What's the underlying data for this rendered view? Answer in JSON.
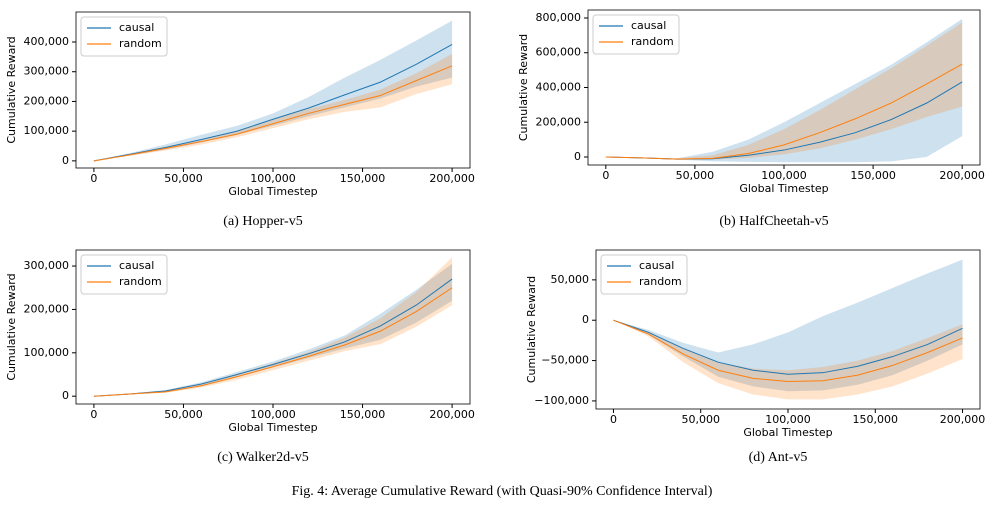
{
  "figure_caption": "Fig. 4: Average Cumulative Reward (with Quasi-90% Confidence Interval)",
  "chart_data": [
    {
      "type": "line",
      "caption": "(a) Hopper-v5",
      "xlabel": "Global Timestep",
      "ylabel": "Cumulative Reward",
      "legend": "upper left",
      "x": [
        0,
        20000,
        40000,
        60000,
        80000,
        100000,
        120000,
        140000,
        160000,
        180000,
        200000
      ],
      "xlim": [
        -10000,
        210000
      ],
      "ylim": [
        -24000,
        501000
      ],
      "xticks": [
        0,
        {
          "value": 50000,
          "label": "50,000"
        },
        {
          "value": 100000,
          "label": "100,000"
        },
        {
          "value": 150000,
          "label": "150,000"
        },
        {
          "value": 200000,
          "label": "200,000"
        }
      ],
      "yticks": [
        0,
        {
          "value": 100000,
          "label": "100,000"
        },
        {
          "value": 200000,
          "label": "200,000"
        },
        {
          "value": 300000,
          "label": "300,000"
        },
        {
          "value": 400000,
          "label": "400,000"
        }
      ],
      "series": [
        {
          "name": "causal",
          "color": "#1f77b4",
          "values": [
            0,
            22000,
            45000,
            72000,
            100000,
            140000,
            178000,
            222000,
            265000,
            325000,
            392000
          ],
          "lower": [
            0,
            18000,
            38000,
            62000,
            88000,
            118000,
            150000,
            180000,
            210000,
            250000,
            280000
          ],
          "upper": [
            0,
            26000,
            55000,
            88000,
            118000,
            160000,
            215000,
            280000,
            340000,
            405000,
            472000
          ]
        },
        {
          "name": "random",
          "color": "#ff7f0e",
          "values": [
            0,
            20000,
            42000,
            65000,
            90000,
            125000,
            160000,
            190000,
            220000,
            270000,
            320000
          ],
          "lower": [
            0,
            17000,
            35000,
            55000,
            80000,
            110000,
            140000,
            165000,
            180000,
            225000,
            258000
          ],
          "upper": [
            0,
            23000,
            48000,
            72000,
            100000,
            140000,
            175000,
            205000,
            240000,
            295000,
            360000
          ]
        }
      ]
    },
    {
      "type": "line",
      "caption": "(b) HalfCheetah-v5",
      "xlabel": "Global Timestep",
      "ylabel": "Cumulative Reward",
      "legend": "upper left",
      "x": [
        0,
        20000,
        40000,
        60000,
        80000,
        100000,
        120000,
        140000,
        160000,
        180000,
        200000
      ],
      "xlim": [
        -10000,
        210000
      ],
      "ylim": [
        -46000,
        846000
      ],
      "xticks": [
        0,
        {
          "value": 50000,
          "label": "50,000"
        },
        {
          "value": 100000,
          "label": "100,000"
        },
        {
          "value": 150000,
          "label": "150,000"
        },
        {
          "value": 200000,
          "label": "200,000"
        }
      ],
      "yticks": [
        0,
        {
          "value": 200000,
          "label": "200,000"
        },
        {
          "value": 400000,
          "label": "400,000"
        },
        {
          "value": 600000,
          "label": "600,000"
        },
        {
          "value": 800000,
          "label": "800,000"
        }
      ],
      "series": [
        {
          "name": "causal",
          "color": "#1f77b4",
          "values": [
            0,
            -5000,
            -12000,
            -10000,
            10000,
            40000,
            85000,
            140000,
            215000,
            310000,
            432000
          ],
          "lower": [
            0,
            -8000,
            -15000,
            -25000,
            -28000,
            -30000,
            -30000,
            -30000,
            -25000,
            0,
            120000
          ],
          "upper": [
            0,
            -2000,
            -8000,
            30000,
            100000,
            200000,
            310000,
            420000,
            530000,
            660000,
            795000
          ]
        },
        {
          "name": "random",
          "color": "#ff7f0e",
          "values": [
            0,
            -5000,
            -12000,
            -8000,
            20000,
            70000,
            140000,
            220000,
            310000,
            420000,
            535000
          ],
          "lower": [
            0,
            -7000,
            -15000,
            -15000,
            -5000,
            15000,
            50000,
            100000,
            160000,
            230000,
            290000
          ],
          "upper": [
            0,
            -3000,
            -8000,
            10000,
            70000,
            160000,
            270000,
            390000,
            510000,
            640000,
            775000
          ]
        }
      ]
    },
    {
      "type": "line",
      "caption": "(c) Walker2d-v5",
      "xlabel": "Global Timestep",
      "ylabel": "Cumulative Reward",
      "legend": "upper left",
      "x": [
        0,
        20000,
        40000,
        60000,
        80000,
        100000,
        120000,
        140000,
        160000,
        180000,
        200000
      ],
      "xlim": [
        -10000,
        210000
      ],
      "ylim": [
        -18000,
        337000
      ],
      "xticks": [
        0,
        {
          "value": 50000,
          "label": "50,000"
        },
        {
          "value": 100000,
          "label": "100,000"
        },
        {
          "value": 150000,
          "label": "150,000"
        },
        {
          "value": 200000,
          "label": "200,000"
        }
      ],
      "yticks": [
        0,
        {
          "value": 100000,
          "label": "100,000"
        },
        {
          "value": 200000,
          "label": "200,000"
        },
        {
          "value": 300000,
          "label": "300,000"
        }
      ],
      "series": [
        {
          "name": "causal",
          "color": "#1f77b4",
          "values": [
            0,
            5000,
            12000,
            28000,
            50000,
            73000,
            98000,
            125000,
            162000,
            210000,
            270000
          ],
          "lower": [
            0,
            4000,
            10000,
            24000,
            44000,
            66000,
            88000,
            110000,
            130000,
            170000,
            220000
          ],
          "upper": [
            0,
            6000,
            14000,
            32000,
            56000,
            80000,
            108000,
            140000,
            190000,
            245000,
            305000
          ]
        },
        {
          "name": "random",
          "color": "#ff7f0e",
          "values": [
            0,
            5000,
            10000,
            24000,
            45000,
            68000,
            92000,
            118000,
            150000,
            195000,
            250000
          ],
          "lower": [
            0,
            4000,
            8000,
            20000,
            38000,
            60000,
            82000,
            104000,
            120000,
            160000,
            210000
          ],
          "upper": [
            0,
            6000,
            12000,
            28000,
            52000,
            76000,
            102000,
            135000,
            180000,
            240000,
            320000
          ]
        }
      ]
    },
    {
      "type": "line",
      "caption": "(d) Ant-v5",
      "xlabel": "Global Timestep",
      "ylabel": "Cumulative Reward",
      "legend": "upper left",
      "x": [
        0,
        20000,
        40000,
        60000,
        80000,
        100000,
        120000,
        140000,
        160000,
        180000,
        200000
      ],
      "xlim": [
        -10000,
        210000
      ],
      "ylim": [
        -110000,
        87000
      ],
      "xticks": [
        0,
        {
          "value": 50000,
          "label": "50,000"
        },
        {
          "value": 100000,
          "label": "100,000"
        },
        {
          "value": 150000,
          "label": "150,000"
        },
        {
          "value": 200000,
          "label": "200,000"
        }
      ],
      "yticks": [
        {
          "value": -100000,
          "label": "−100,000"
        },
        {
          "value": -50000,
          "label": "−50,000"
        },
        0,
        {
          "value": 50000,
          "label": "50,000"
        }
      ],
      "series": [
        {
          "name": "causal",
          "color": "#1f77b4",
          "values": [
            0,
            -15000,
            -35000,
            -52000,
            -62000,
            -67000,
            -65000,
            -57000,
            -45000,
            -30000,
            -10000
          ],
          "lower": [
            0,
            -18000,
            -45000,
            -70000,
            -82000,
            -88000,
            -87000,
            -80000,
            -68000,
            -50000,
            -30000
          ],
          "upper": [
            0,
            -12000,
            -28000,
            -40000,
            -30000,
            -15000,
            5000,
            22000,
            40000,
            58000,
            75000
          ]
        },
        {
          "name": "random",
          "color": "#ff7f0e",
          "values": [
            0,
            -17000,
            -42000,
            -62000,
            -72000,
            -76000,
            -75000,
            -68000,
            -56000,
            -40000,
            -22000
          ],
          "lower": [
            0,
            -20000,
            -52000,
            -78000,
            -92000,
            -98000,
            -98000,
            -92000,
            -82000,
            -66000,
            -48000
          ],
          "upper": [
            0,
            -14000,
            -35000,
            -52000,
            -60000,
            -62000,
            -58000,
            -50000,
            -38000,
            -22000,
            -5000
          ]
        }
      ]
    }
  ]
}
